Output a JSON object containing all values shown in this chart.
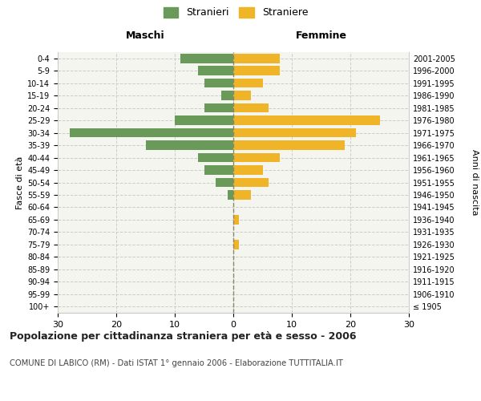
{
  "age_groups": [
    "100+",
    "95-99",
    "90-94",
    "85-89",
    "80-84",
    "75-79",
    "70-74",
    "65-69",
    "60-64",
    "55-59",
    "50-54",
    "45-49",
    "40-44",
    "35-39",
    "30-34",
    "25-29",
    "20-24",
    "15-19",
    "10-14",
    "5-9",
    "0-4"
  ],
  "birth_years": [
    "≤ 1905",
    "1906-1910",
    "1911-1915",
    "1916-1920",
    "1921-1925",
    "1926-1930",
    "1931-1935",
    "1936-1940",
    "1941-1945",
    "1946-1950",
    "1951-1955",
    "1956-1960",
    "1961-1965",
    "1966-1970",
    "1971-1975",
    "1976-1980",
    "1981-1985",
    "1986-1990",
    "1991-1995",
    "1996-2000",
    "2001-2005"
  ],
  "males": [
    0,
    0,
    0,
    0,
    0,
    0,
    0,
    0,
    0,
    1,
    3,
    5,
    6,
    15,
    28,
    10,
    5,
    2,
    5,
    6,
    9
  ],
  "females": [
    0,
    0,
    0,
    0,
    0,
    1,
    0,
    1,
    0,
    3,
    6,
    5,
    8,
    19,
    21,
    25,
    6,
    3,
    5,
    8,
    8
  ],
  "male_color": "#6a9a5a",
  "female_color": "#f0b429",
  "male_label": "Stranieri",
  "female_label": "Straniere",
  "title_main": "Popolazione per cittadinanza straniera per età e sesso - 2006",
  "title_sub": "COMUNE DI LABICO (RM) - Dati ISTAT 1° gennaio 2006 - Elaborazione TUTTITALIA.IT",
  "header_left": "Maschi",
  "header_right": "Femmine",
  "ylabel_left": "Fasce di età",
  "ylabel_right": "Anni di nascita",
  "xlim": 30,
  "xtick_vals": [
    -30,
    -20,
    -10,
    0,
    10,
    20,
    30
  ],
  "xtick_labels": [
    "30",
    "20",
    "10",
    "0",
    "10",
    "20",
    "30"
  ],
  "bg_plot": "#f5f5f0",
  "bg_fig": "#ffffff",
  "grid_color": "#cccccc",
  "zero_line_color": "#888866",
  "spine_color": "#cccccc"
}
